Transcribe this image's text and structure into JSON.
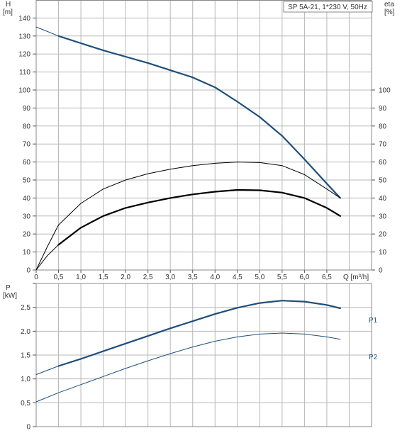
{
  "chart_data": [
    {
      "type": "line",
      "title": "SP 5A-21, 1*230 V, 50Hz",
      "x_unit_label": "Q [m³/h]",
      "x_ticks": [
        "0",
        "0,5",
        "1,0",
        "1,5",
        "2,0",
        "2,5",
        "3,0",
        "3,5",
        "4,0",
        "4,5",
        "5,0",
        "5,5",
        "6,0",
        "6,5"
      ],
      "xlim": [
        0,
        7.5
      ],
      "left_axis": {
        "label_line1": "H",
        "label_line2": "[m]",
        "ylim": [
          0,
          150
        ],
        "ticks": [
          "0",
          "10",
          "20",
          "30",
          "40",
          "50",
          "60",
          "70",
          "80",
          "90",
          "100",
          "110",
          "120",
          "130",
          "140"
        ]
      },
      "right_axis": {
        "label_line1": "eta",
        "label_line2": "[%]",
        "ylim": [
          0,
          150
        ],
        "ticks": [
          "0",
          "10",
          "20",
          "30",
          "40",
          "50",
          "60",
          "70",
          "80",
          "90",
          "100"
        ]
      },
      "grid": true,
      "series": [
        {
          "axis": "left",
          "color": "#1f4e7a",
          "width": 2.2,
          "x": [
            0.5,
            1.0,
            1.5,
            2.0,
            2.5,
            3.0,
            3.5,
            4.0,
            4.5,
            5.0,
            5.5,
            6.0,
            6.5,
            6.8
          ],
          "y": [
            130,
            126,
            122,
            118.5,
            115,
            111,
            107,
            101.5,
            93.5,
            85,
            74.5,
            61.5,
            48,
            40
          ]
        },
        {
          "axis": "left",
          "color": "#1f4e7a",
          "width": 1,
          "x": [
            0,
            0.25,
            0.5
          ],
          "y": [
            135,
            132.5,
            130
          ]
        },
        {
          "axis": "right",
          "color": "#000000",
          "width": 1,
          "x": [
            0.5,
            1.0,
            1.5,
            2.0,
            2.5,
            3.0,
            3.5,
            4.0,
            4.5,
            5.0,
            5.5,
            6.0,
            6.5,
            6.8
          ],
          "y": [
            25,
            37,
            45,
            50,
            53.5,
            56,
            58,
            59.3,
            60,
            59.7,
            58,
            53,
            45,
            40
          ]
        },
        {
          "axis": "right",
          "color": "#000000",
          "width": 1,
          "x": [
            0,
            0.25,
            0.5
          ],
          "y": [
            0,
            13,
            25
          ]
        },
        {
          "axis": "right",
          "color": "#000000",
          "width": 2.2,
          "x": [
            0.5,
            1.0,
            1.5,
            2.0,
            2.5,
            3.0,
            3.5,
            4.0,
            4.5,
            5.0,
            5.5,
            6.0,
            6.5,
            6.8
          ],
          "y": [
            14,
            23.5,
            30,
            34.5,
            37.5,
            40,
            42,
            43.5,
            44.5,
            44.3,
            43,
            40,
            34.5,
            30
          ]
        },
        {
          "axis": "right",
          "color": "#000000",
          "width": 1,
          "x": [
            0,
            0.25,
            0.5
          ],
          "y": [
            0,
            8,
            14
          ]
        }
      ]
    },
    {
      "type": "line",
      "xlim": [
        0,
        7.5
      ],
      "left_axis": {
        "label_line1": "P",
        "label_line2": "[kW]",
        "ylim": [
          0,
          3.0
        ],
        "ticks": [
          "0",
          "0,5",
          "1,0",
          "1,5",
          "2,0",
          "2,5"
        ]
      },
      "grid": true,
      "series": [
        {
          "name": "P1",
          "color": "#1f4e7a",
          "width": 2.2,
          "x": [
            0.5,
            1.0,
            1.5,
            2.0,
            2.5,
            3.0,
            3.5,
            4.0,
            4.5,
            5.0,
            5.5,
            6.0,
            6.5,
            6.8
          ],
          "y": [
            1.27,
            1.42,
            1.58,
            1.74,
            1.9,
            2.06,
            2.21,
            2.36,
            2.49,
            2.59,
            2.64,
            2.62,
            2.55,
            2.48
          ]
        },
        {
          "name": "",
          "color": "#1f4e7a",
          "width": 1,
          "x": [
            0,
            0.25,
            0.5
          ],
          "y": [
            1.09,
            1.18,
            1.27
          ]
        },
        {
          "name": "P2",
          "color": "#1f4e7a",
          "width": 1,
          "x": [
            0,
            0.5,
            1.0,
            1.5,
            2.0,
            2.5,
            3.0,
            3.5,
            4.0,
            4.5,
            5.0,
            5.5,
            6.0,
            6.5,
            6.8
          ],
          "y": [
            0.52,
            0.71,
            0.88,
            1.05,
            1.22,
            1.38,
            1.53,
            1.67,
            1.79,
            1.88,
            1.94,
            1.96,
            1.94,
            1.88,
            1.83
          ]
        }
      ]
    }
  ]
}
